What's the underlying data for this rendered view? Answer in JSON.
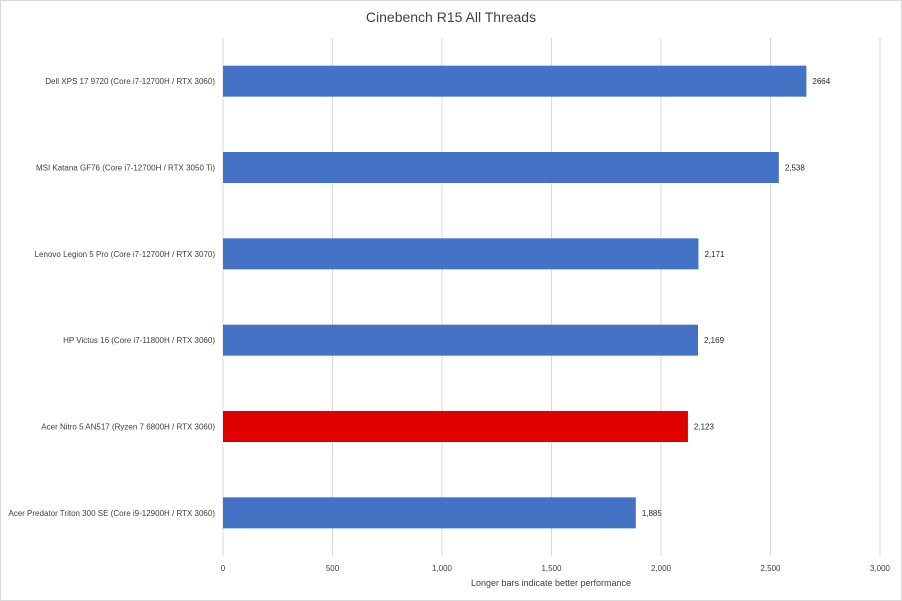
{
  "chart_data": {
    "type": "bar",
    "orientation": "horizontal",
    "title": "Cinebench R15 All Threads",
    "xlabel": "Longer bars indicate better performance",
    "ylabel": "",
    "categories": [
      "Dell XPS 17 9720 (Core i7-12700H / RTX 3060)",
      "MSI Katana GF76 (Core i7-12700H / RTX 3050 Ti)",
      "Lenovo Legion 5 Pro (Core i7-12700H / RTX 3070)",
      "HP Victus 16 (Core i7-11800H / RTX 3060)",
      "Acer Nitro 5 AN517 (Ryzen 7 6800H / RTX 3060)",
      "Acer Predator Triton 300 SE (Core i9-12900H / RTX 3060)"
    ],
    "values": [
      2664,
      2538,
      2171,
      2169,
      2123,
      1885
    ],
    "value_labels": [
      "2664",
      "2,538",
      "2,171",
      "2,169",
      "2,123",
      "1,885"
    ],
    "bar_colors": [
      "#4472c4",
      "#4472c4",
      "#4472c4",
      "#4472c4",
      "#e00000",
      "#4472c4"
    ],
    "xlim": [
      0,
      3000
    ],
    "xticks": [
      0,
      500,
      1000,
      1500,
      2000,
      2500,
      3000
    ],
    "xtick_labels": [
      "0",
      "500",
      "1,000",
      "1,500",
      "2,000",
      "2,500",
      "3,000"
    ],
    "grid": true
  }
}
